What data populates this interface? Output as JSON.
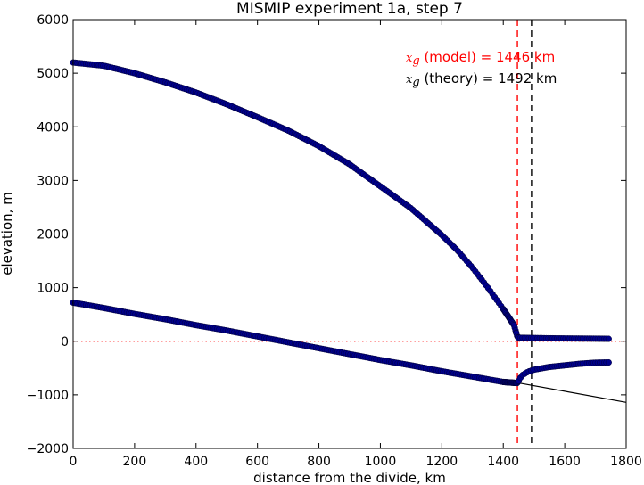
{
  "chart_data": {
    "type": "scatter",
    "title": "MISMIP experiment 1a, step 7",
    "xlabel": "distance from the divide, km",
    "ylabel": "elevation, m",
    "xlim": [
      0,
      1800
    ],
    "ylim": [
      -2000,
      6000
    ],
    "xticks": [
      "0",
      "200",
      "400",
      "600",
      "800",
      "1000",
      "1200",
      "1400",
      "1600",
      "1800"
    ],
    "yticks": [
      "−2000",
      "−1000",
      "0",
      "1000",
      "2000",
      "3000",
      "4000",
      "5000",
      "6000"
    ],
    "grid": false,
    "colors": {
      "points": "#00008b",
      "model": "#ff0000",
      "theory": "#000000",
      "sea_level": "#ff0000",
      "bed": "#000000"
    },
    "grounding_line": {
      "model_km": 1446,
      "theory_km": 1492
    },
    "annotations": {
      "model_symbol": "x",
      "model_subscript": "g",
      "model_text": " (model) = 1446 km",
      "theory_symbol": "x",
      "theory_subscript": "g",
      "theory_text": " (theory) = 1492 km"
    },
    "bed_line": {
      "x": [
        0,
        1800
      ],
      "y": [
        720,
        -1140
      ]
    },
    "sea_level": 0,
    "series": [
      {
        "role": "surface",
        "x": [
          0,
          100,
          200,
          300,
          400,
          500,
          600,
          700,
          800,
          900,
          1000,
          1100,
          1200,
          1250,
          1300,
          1350,
          1380,
          1400,
          1420,
          1435,
          1446,
          1450,
          1500,
          1550,
          1600,
          1650,
          1700,
          1745
        ],
        "y": [
          5200,
          5140,
          5000,
          4830,
          4640,
          4420,
          4180,
          3930,
          3640,
          3300,
          2890,
          2480,
          1980,
          1700,
          1370,
          1000,
          760,
          600,
          430,
          300,
          80,
          65,
          60,
          55,
          52,
          50,
          48,
          45
        ]
      },
      {
        "role": "base",
        "x": [
          0,
          100,
          200,
          300,
          400,
          500,
          600,
          700,
          800,
          900,
          1000,
          1100,
          1200,
          1300,
          1400,
          1446,
          1460,
          1480,
          1500,
          1550,
          1600,
          1650,
          1700,
          1745
        ],
        "y": [
          720,
          620,
          510,
          410,
          300,
          200,
          90,
          -20,
          -130,
          -240,
          -350,
          -450,
          -560,
          -660,
          -760,
          -780,
          -640,
          -570,
          -530,
          -480,
          -450,
          -420,
          -400,
          -395
        ]
      }
    ]
  }
}
